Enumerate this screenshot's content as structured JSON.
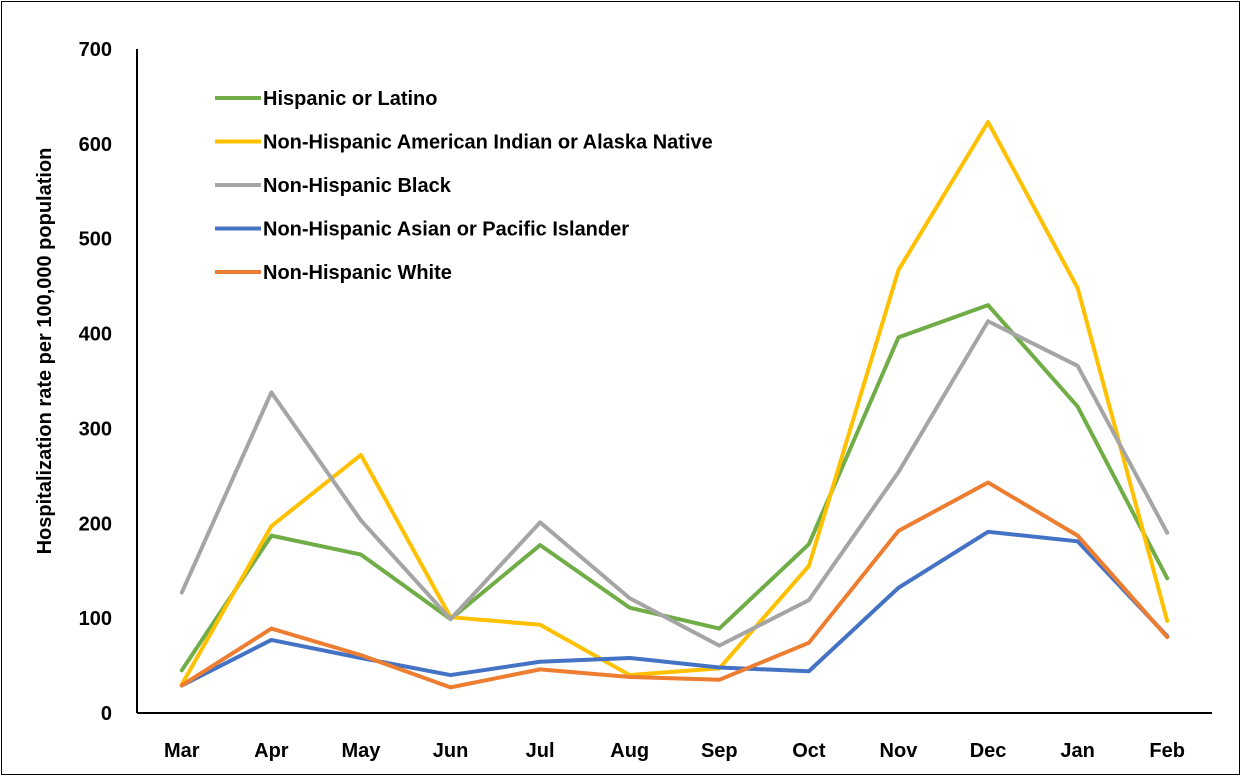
{
  "chart_data": {
    "type": "line",
    "title": "",
    "xlabel": "",
    "ylabel": "Hospitalization rate per 100,000 population",
    "ylim": [
      0,
      700
    ],
    "yticks": [
      0,
      100,
      200,
      300,
      400,
      500,
      600,
      700
    ],
    "categories": [
      "Mar",
      "Apr",
      "May",
      "Jun",
      "Jul",
      "Aug",
      "Sep",
      "Oct",
      "Nov",
      "Dec",
      "Jan",
      "Feb"
    ],
    "grid": false,
    "legend_position": "top-left",
    "series": [
      {
        "name": "Hispanic or Latino",
        "color": "#70AD47",
        "values": [
          45,
          187,
          167,
          99,
          177,
          111,
          89,
          178,
          396,
          430,
          323,
          142
        ]
      },
      {
        "name": "Non-Hispanic American Indian or Alaska Native",
        "color": "#FFC000",
        "values": [
          30,
          197,
          272,
          101,
          93,
          40,
          47,
          155,
          467,
          623,
          448,
          97
        ]
      },
      {
        "name": "Non-Hispanic Black",
        "color": "#A5A5A5",
        "values": [
          127,
          338,
          203,
          99,
          201,
          121,
          71,
          119,
          254,
          413,
          366,
          190
        ]
      },
      {
        "name": "Non-Hispanic Asian or Pacific Islander",
        "color": "#4472C4",
        "values": [
          29,
          77,
          58,
          40,
          54,
          58,
          48,
          44,
          132,
          191,
          181,
          81
        ]
      },
      {
        "name": "Non-Hispanic White",
        "color": "#ED7D31",
        "values": [
          29,
          89,
          61,
          27,
          46,
          38,
          35,
          74,
          192,
          243,
          187,
          80
        ]
      }
    ]
  }
}
